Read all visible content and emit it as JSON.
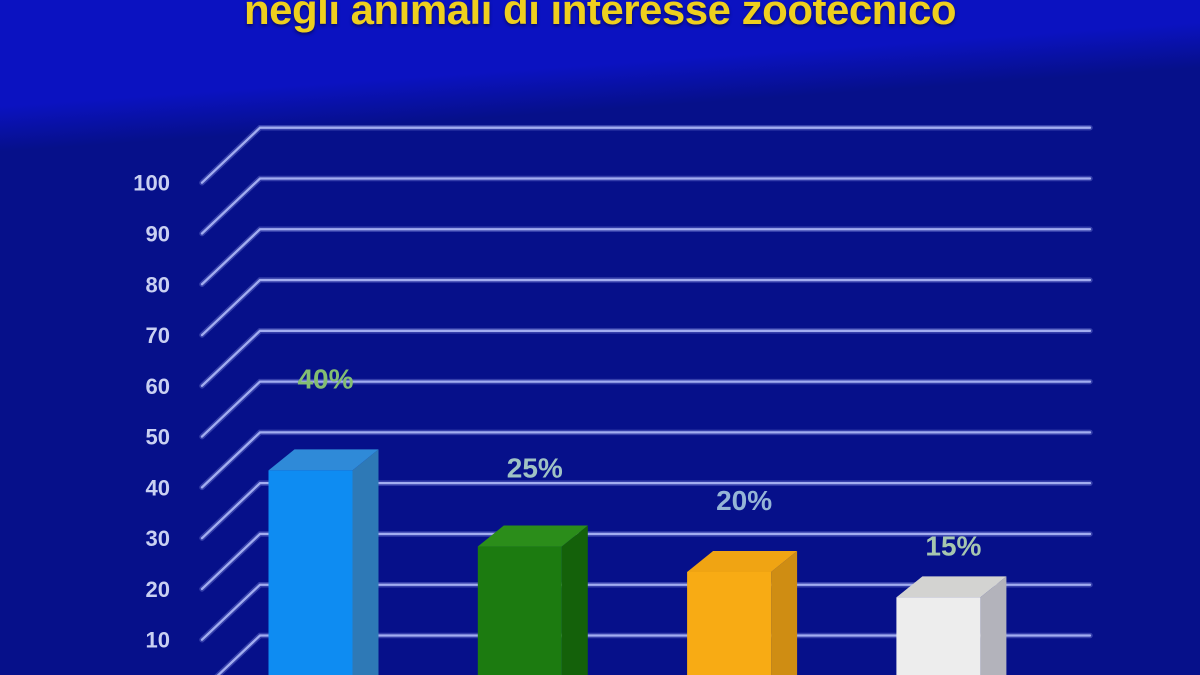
{
  "title": {
    "text": "negli animali di interesse zootecnico",
    "color": "#eecf1e"
  },
  "chart_data": {
    "type": "bar",
    "style": "3d-column-perspective",
    "title": "negli animali di interesse zootecnico",
    "values": [
      40,
      25,
      20,
      15
    ],
    "data_labels": [
      "40%",
      "25%",
      "20%",
      "15%"
    ],
    "label_colors": [
      "#83bd72",
      "#9fc2c4",
      "#95b4d6",
      "#a6c6af"
    ],
    "bar_colors": [
      "#0e8cf2",
      "#1c7b10",
      "#f8ab14",
      "#ededed"
    ],
    "bar_top_colors": [
      "#2f8ad8",
      "#2b8d1a",
      "#f0a413",
      "#d3d3d1"
    ],
    "bar_side_colors": [
      "#2e79b6",
      "#14610a",
      "#cf8d13",
      "#b3b3bb"
    ],
    "y_axis": {
      "ticks": [
        100,
        90,
        80,
        70,
        60,
        50,
        40,
        30,
        20,
        10
      ],
      "min": 0,
      "max": 100,
      "tick_color": "#c9d0f2"
    },
    "xlabel": "",
    "ylabel": "",
    "grid": true,
    "gridline_color": "#a2adf0",
    "legend": "none",
    "background": {
      "top": "#0b12c1",
      "bottom": "#06108a"
    }
  }
}
